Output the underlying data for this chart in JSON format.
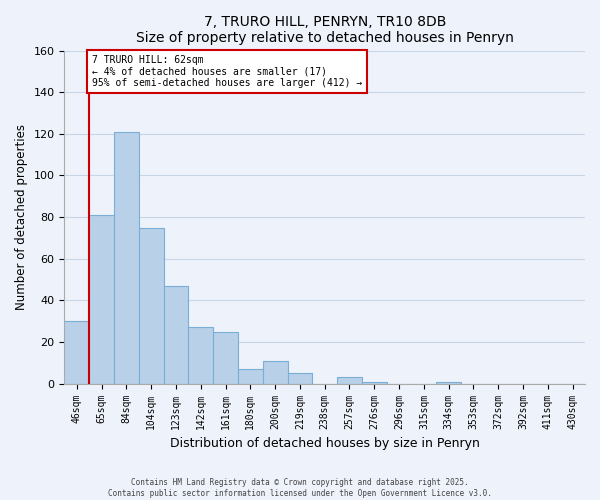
{
  "title": "7, TRURO HILL, PENRYN, TR10 8DB",
  "subtitle": "Size of property relative to detached houses in Penryn",
  "xlabel": "Distribution of detached houses by size in Penryn",
  "ylabel": "Number of detached properties",
  "bar_labels": [
    "46sqm",
    "65sqm",
    "84sqm",
    "104sqm",
    "123sqm",
    "142sqm",
    "161sqm",
    "180sqm",
    "200sqm",
    "219sqm",
    "238sqm",
    "257sqm",
    "276sqm",
    "296sqm",
    "315sqm",
    "334sqm",
    "353sqm",
    "372sqm",
    "392sqm",
    "411sqm",
    "430sqm"
  ],
  "bar_values": [
    30,
    81,
    121,
    75,
    47,
    27,
    25,
    7,
    11,
    5,
    0,
    3,
    1,
    0,
    0,
    1,
    0,
    0,
    0,
    0,
    0
  ],
  "bar_color": "#b8d0e8",
  "bar_edge_color": "#7aaed6",
  "vline_after_bar": 0,
  "vline_color": "#cc0000",
  "annotation_text": "7 TRURO HILL: 62sqm\n← 4% of detached houses are smaller (17)\n95% of semi-detached houses are larger (412) →",
  "annotation_box_facecolor": "#ffffff",
  "annotation_box_edgecolor": "#cc0000",
  "ylim": [
    0,
    160
  ],
  "yticks": [
    0,
    20,
    40,
    60,
    80,
    100,
    120,
    140,
    160
  ],
  "grid_color": "#c8d4e8",
  "background_color": "#eef2fa",
  "footer_line1": "Contains HM Land Registry data © Crown copyright and database right 2025.",
  "footer_line2": "Contains public sector information licensed under the Open Government Licence v3.0."
}
